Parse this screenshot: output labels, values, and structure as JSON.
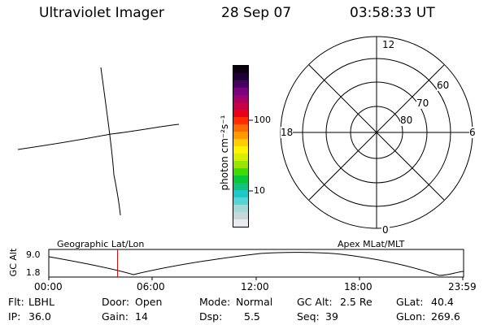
{
  "header": {
    "instrument": "Ultraviolet Imager",
    "date": "28 Sep 07",
    "time": "03:58:33 UT"
  },
  "colorbar": {
    "unit_label": "photon cm⁻²s⁻¹",
    "tick_labels": [
      "100",
      "10"
    ],
    "colors": [
      "#e8ecee",
      "#c9d6da",
      "#a5d8d9",
      "#55d6d6",
      "#1ec8c8",
      "#13c37c",
      "#08c83a",
      "#3fdb05",
      "#98e600",
      "#d6ee00",
      "#fff200",
      "#ffcc00",
      "#ff9900",
      "#ff6a00",
      "#ff2d00",
      "#e8001c",
      "#c70046",
      "#a4006c",
      "#7a0080",
      "#4a0063",
      "#1f0036",
      "#0b0012"
    ]
  },
  "polar_plot": {
    "mlt_labels": {
      "top": "12",
      "left": "18",
      "right": "6",
      "bottom": "0"
    },
    "lat_labels": [
      "60",
      "70",
      "80"
    ]
  },
  "altitude_plot": {
    "ylabel": "GC Alt",
    "yticks": [
      "9.0",
      "1.8"
    ],
    "left_caption": "Geographic Lat/Lon",
    "right_caption": "Apex MLat/MLT",
    "xticks": [
      "00:00",
      "06:00",
      "12:00",
      "18:00",
      "23:59"
    ],
    "current_time_hours": 3.98
  },
  "info": {
    "row1": [
      {
        "label": "Flt:",
        "value": "LBHL"
      },
      {
        "label": "Door:",
        "value": "Open"
      },
      {
        "label": "Mode:",
        "value": "Normal"
      },
      {
        "label": "GC Alt:",
        "value": "2.5 Re"
      },
      {
        "label": "GLat:",
        "value": "40.4"
      }
    ],
    "row2": [
      {
        "label": "IP:",
        "value": "36.0"
      },
      {
        "label": "Gain:",
        "value": "14"
      },
      {
        "label": "Dsp:",
        "value": "5.5"
      },
      {
        "label": "Seq:",
        "value": "39"
      },
      {
        "label": "GLon:",
        "value": "269.6"
      }
    ]
  }
}
